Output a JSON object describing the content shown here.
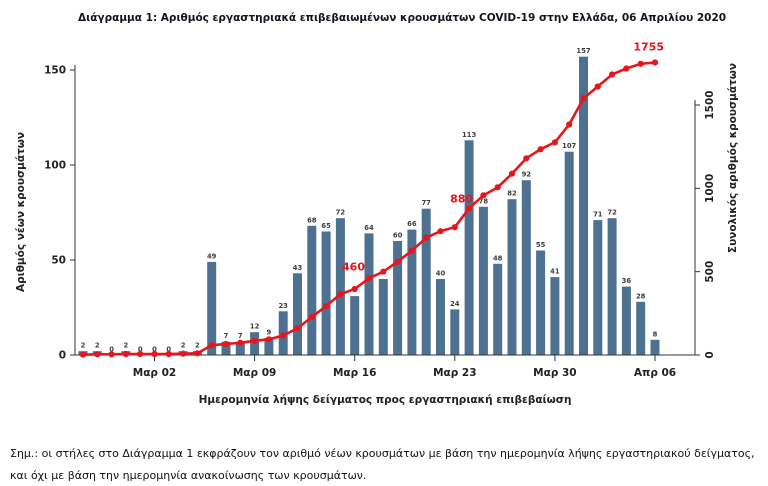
{
  "page": {
    "title": "Διάγραμμα 1: Αριθμός εργαστηριακά επιβεβαιωμένων κρουσμάτων COVID-19 στην Ελλάδα, 06 Απριλίου 2020",
    "footnote": "Σημ.: οι στήλες στο Διάγραμμα 1 εκφράζουν τον αριθμό νέων κρουσμάτων με βάση την ημερομηνία λήψης εργαστηριακού δείγματος, και όχι με βάση την ημερομηνία ανακοίνωσης των κρουσμάτων."
  },
  "chart_data": {
    "type": "bar",
    "title": "Διάγραμμα 1: Αριθμός εργαστηριακά επιβεβαιωμένων κρουσμάτων COVID-19 στην Ελλάδα, 06 Απριλίου 2020",
    "xlabel": "Ημερομηνία λήψης δείγματος προς εργαστηριακή επιβεβαίωση",
    "ylabel_left": "Αριθμός νέων κρουσμάτων",
    "ylabel_right": "Συνολικός αριθμός κρουσμάτων",
    "ylim_left": [
      0,
      150
    ],
    "yticks_left": [
      0,
      50,
      100,
      150
    ],
    "ylim_right": [
      0,
      1500
    ],
    "yticks_right": [
      0,
      500,
      1000,
      1500
    ],
    "grid": false,
    "legend": "none",
    "x_tick_labels": [
      {
        "index": 5,
        "label": "Μαρ 02"
      },
      {
        "index": 12,
        "label": "Μαρ 09"
      },
      {
        "index": 19,
        "label": "Μαρ 16"
      },
      {
        "index": 26,
        "label": "Μαρ 23"
      },
      {
        "index": 33,
        "label": "Μαρ 30"
      },
      {
        "index": 40,
        "label": "Απρ 06"
      }
    ],
    "series": [
      {
        "name": "daily-new-cases-bars",
        "type": "bar",
        "values": [
          2,
          2,
          0,
          2,
          0,
          0,
          0,
          2,
          2,
          49,
          7,
          7,
          12,
          9,
          23,
          43,
          68,
          65,
          72,
          31,
          64,
          40,
          60,
          66,
          77,
          40,
          24,
          113,
          78,
          48,
          82,
          92,
          55,
          41,
          107,
          157,
          71,
          72,
          36,
          28,
          8
        ],
        "value_labels_hidden_at": [
          19,
          21
        ]
      },
      {
        "name": "cumulative-cases-line",
        "type": "line",
        "values": [
          2,
          4,
          4,
          6,
          6,
          6,
          6,
          8,
          10,
          59,
          66,
          73,
          85,
          94,
          117,
          160,
          228,
          293,
          365,
          396,
          460,
          500,
          560,
          626,
          703,
          743,
          767,
          880,
          958,
          1006,
          1088,
          1180,
          1235,
          1276,
          1383,
          1540,
          1611,
          1683,
          1719,
          1747,
          1755
        ]
      }
    ],
    "annotations": [
      {
        "series": "cumulative-cases-line",
        "index": 20,
        "text": "460"
      },
      {
        "series": "cumulative-cases-line",
        "index": 27,
        "text": "880"
      },
      {
        "series": "cumulative-cases-line",
        "index": 40,
        "text": "1755"
      }
    ],
    "colors": {
      "bar": "#4e7191",
      "line": "#e9151d",
      "annotation": "#e9151d",
      "axis": "#333333",
      "tick_text": "#222222",
      "bar_label_text": "#3d3d3d"
    }
  }
}
